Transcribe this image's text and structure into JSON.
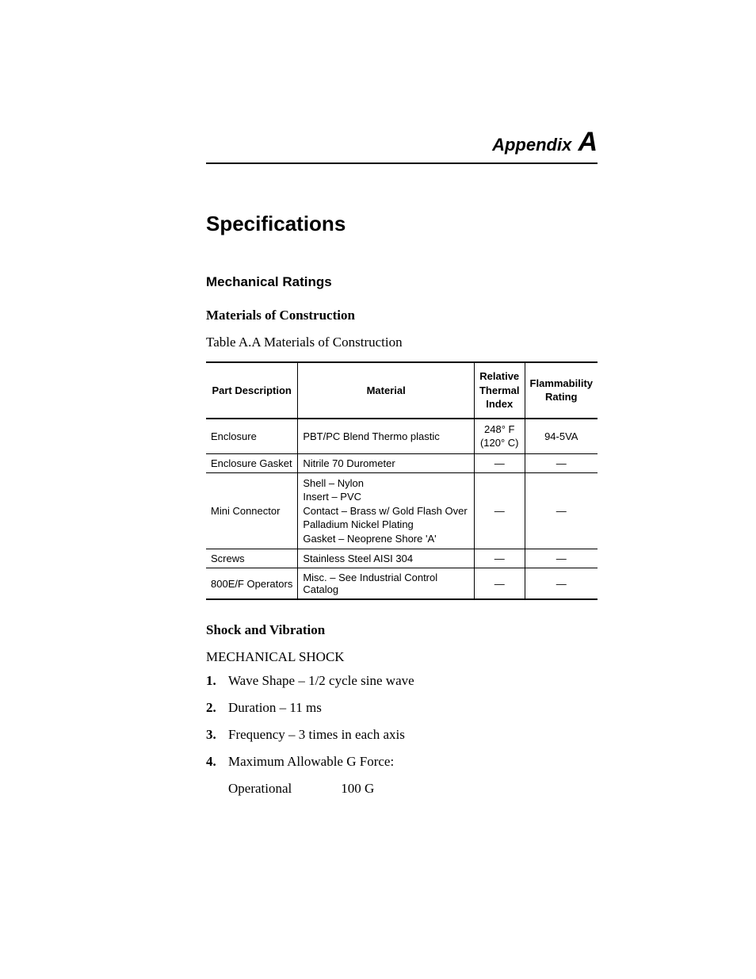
{
  "appendix": {
    "label": "Appendix ",
    "letter": "A"
  },
  "title": "Specifications",
  "section1": "Mechanical Ratings",
  "subsection1": "Materials of Construction",
  "table_caption": "Table A.A Materials of Construction",
  "table": {
    "headers": {
      "c1": "Part Description",
      "c2": "Material",
      "c3": "Relative\nThermal\nIndex",
      "c4": "Flammability\nRating"
    },
    "rows": [
      {
        "part": "Enclosure",
        "material": "PBT/PC Blend Thermo plastic",
        "rti": "248° F\n(120° C)",
        "flam": "94-5VA"
      },
      {
        "part": "Enclosure Gasket",
        "material": "Nitrile 70 Durometer",
        "rti": "—",
        "flam": "—"
      },
      {
        "part": "Mini Connector",
        "material": "Shell – Nylon\nInsert – PVC\nContact – Brass w/ Gold Flash Over Palladium Nickel Plating\nGasket – Neoprene Shore 'A'",
        "rti": "—",
        "flam": "—"
      },
      {
        "part": "Screws",
        "material": "Stainless Steel AISI 304",
        "rti": "—",
        "flam": "—"
      },
      {
        "part": "800E/F Operators",
        "material": "Misc. – See Industrial Control Catalog",
        "rti": "—",
        "flam": "—"
      }
    ]
  },
  "subsection2": "Shock and Vibration",
  "shock_title": "MECHANICAL SHOCK",
  "shock_items": [
    "Wave Shape – 1/2 cycle sine wave",
    "Duration – 11 ms",
    "Frequency – 3 times in each axis",
    "Maximum Allowable G Force:"
  ],
  "gforce": {
    "label": "Operational",
    "value": "100 G"
  }
}
